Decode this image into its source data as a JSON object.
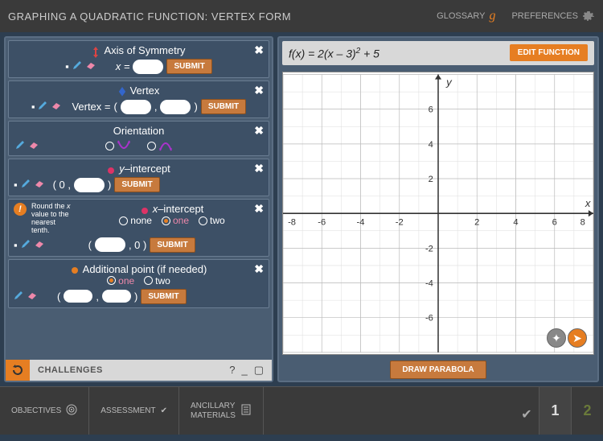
{
  "header": {
    "title": "GRAPHING A QUADRATIC FUNCTION: VERTEX FORM",
    "glossary": "GLOSSARY",
    "preferences": "PREFERENCES"
  },
  "panels": {
    "axis": {
      "title": "Axis of Symmetry",
      "label": "x =",
      "submit": "SUBMIT"
    },
    "vertex": {
      "title": "Vertex",
      "label": "Vertex =",
      "submit": "SUBMIT"
    },
    "orientation": {
      "title": "Orientation"
    },
    "yint": {
      "title": "y–intercept",
      "submit": "SUBMIT"
    },
    "xint": {
      "title": "x–intercept",
      "hint": "Round the x value to the nearest tenth.",
      "opts": [
        "none",
        "one",
        "two"
      ],
      "submit": "SUBMIT"
    },
    "addpt": {
      "title": "Additional point (if needed)",
      "opts": [
        "one",
        "two"
      ],
      "submit": "SUBMIT"
    }
  },
  "challenges": "CHALLENGES",
  "equation": {
    "fx": "f",
    "open": "(",
    "x": "x",
    "close": ") = 2(",
    "x2": "x",
    "rest": " – 3)",
    "sup": "2",
    "end": " + 5"
  },
  "editFn": "EDIT FUNCTION",
  "drawParabola": "DRAW PARABOLA",
  "graph": {
    "xmin": -8,
    "xmax": 8,
    "ymin": -8,
    "ymax": 8,
    "xticks": [
      -6,
      -4,
      -2,
      2,
      4,
      6
    ],
    "yticks": [
      -6,
      -4,
      -2,
      2,
      4,
      6
    ],
    "xlabel": "x",
    "ylabel": "y"
  },
  "nav": {
    "objectives": "OBJECTIVES",
    "assessment": "ASSESSMENT",
    "ancillary": "ANCILLARY MATERIALS",
    "pages": [
      "1",
      "2"
    ]
  },
  "colors": {
    "orange": "#e67e22",
    "brown": "#c77a3d",
    "panel": "#3d5066",
    "bg": "#2d3e50"
  }
}
